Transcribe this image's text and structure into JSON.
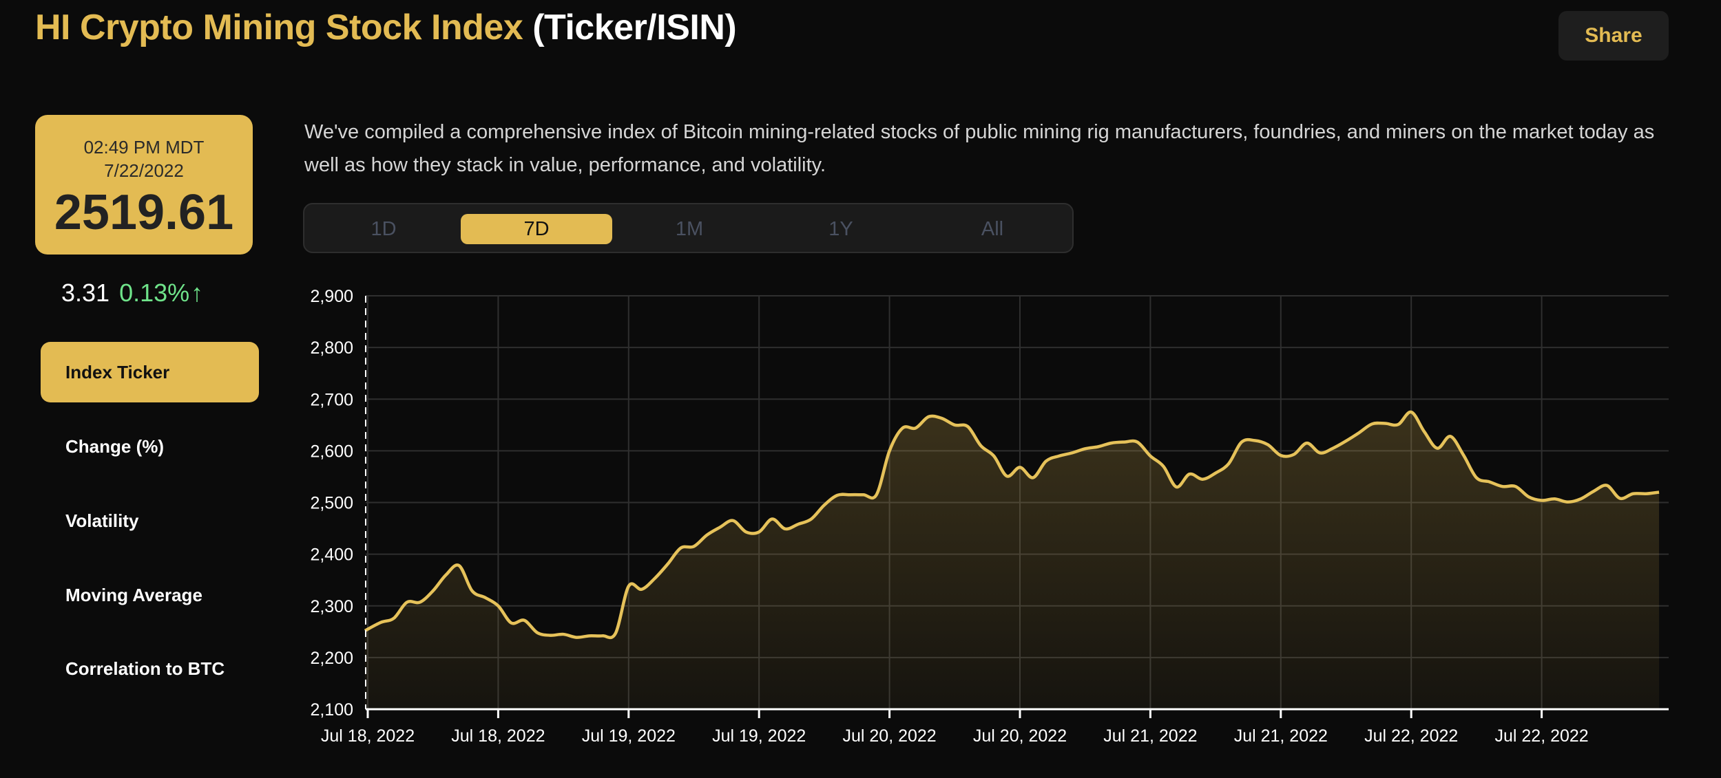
{
  "header": {
    "title_main": "HI Crypto Mining Stock Index",
    "title_suffix": "(Ticker/ISIN)",
    "share_label": "Share"
  },
  "price_card": {
    "time": "02:49 PM MDT",
    "date": "7/22/2022",
    "price": "2519.61"
  },
  "change": {
    "absolute": "3.31",
    "percent": "0.13%",
    "direction_icon": "arrow-up-icon",
    "percent_glyph": "↑"
  },
  "sidebar": {
    "items": [
      {
        "label": "Index Ticker",
        "active": true
      },
      {
        "label": "Change (%)",
        "active": false
      },
      {
        "label": "Volatility",
        "active": false
      },
      {
        "label": "Moving Average",
        "active": false
      },
      {
        "label": "Correlation to BTC",
        "active": false
      }
    ]
  },
  "description": "We've compiled a comprehensive index of Bitcoin mining-related stocks of public mining rig manufacturers, foundries, and miners on the market today as well as how they stack in value, performance, and volatility.",
  "range_tabs": {
    "items": [
      "1D",
      "7D",
      "1M",
      "1Y",
      "All"
    ],
    "selected": "7D"
  },
  "colors": {
    "accent": "#e3bb53",
    "background": "#0b0b0b",
    "positive": "#6fe38a",
    "line": "#e6c25a"
  },
  "chart_data": {
    "type": "area",
    "title": "",
    "xlabel": "",
    "ylabel": "",
    "ylim": [
      2100,
      2900
    ],
    "yticks": [
      "2,900",
      "2,800",
      "2,700",
      "2,600",
      "2,500",
      "2,400",
      "2,300",
      "2,200",
      "2,100"
    ],
    "ytick_values": [
      2900,
      2800,
      2700,
      2600,
      2500,
      2400,
      2300,
      2200,
      2100
    ],
    "xticks": [
      "Jul 18, 2022",
      "Jul 18, 2022",
      "Jul 19, 2022",
      "Jul 19, 2022",
      "Jul 20, 2022",
      "Jul 20, 2022",
      "Jul 21, 2022",
      "Jul 21, 2022",
      "Jul 22, 2022",
      "Jul 22, 2022"
    ],
    "grid": true,
    "series": [
      {
        "values": [
          2252,
          2268,
          2276,
          2307,
          2307,
          2329,
          2360,
          2378,
          2329,
          2316,
          2300,
          2267,
          2272,
          2248,
          2243,
          2245,
          2239,
          2242,
          2242,
          2247,
          2338,
          2332,
          2353,
          2381,
          2412,
          2415,
          2437,
          2452,
          2465,
          2443,
          2443,
          2468,
          2449,
          2458,
          2468,
          2495,
          2514,
          2515,
          2515,
          2515,
          2600,
          2644,
          2644,
          2666,
          2663,
          2650,
          2647,
          2610,
          2590,
          2551,
          2568,
          2548,
          2580,
          2590,
          2596,
          2604,
          2608,
          2615,
          2617,
          2617,
          2590,
          2570,
          2530,
          2555,
          2545,
          2557,
          2575,
          2617,
          2620,
          2612,
          2591,
          2593,
          2615,
          2596,
          2605,
          2619,
          2635,
          2652,
          2653,
          2651,
          2675,
          2637,
          2605,
          2628,
          2592,
          2548,
          2540,
          2531,
          2531,
          2511,
          2504,
          2507,
          2501,
          2507,
          2522,
          2533,
          2508,
          2517,
          2517,
          2520
        ]
      }
    ]
  }
}
